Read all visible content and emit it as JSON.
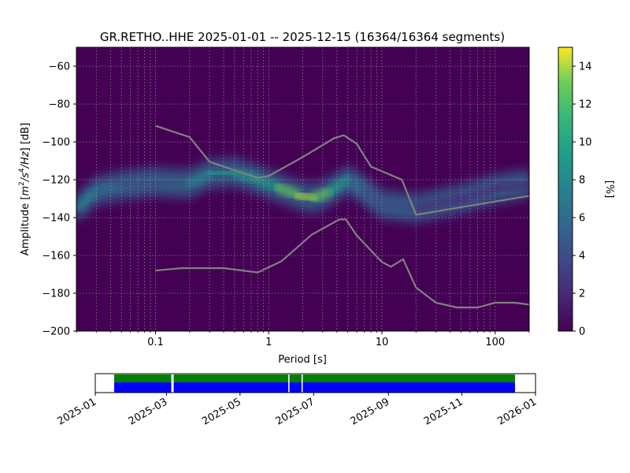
{
  "chart_data": [
    {
      "type": "heatmap",
      "title": "GR.RETHO..HHE   2025-01-01 -- 2025-12-15  (16364/16364 segments)",
      "xlabel": "Period [s]",
      "ylabel": "Amplitude [m2/s4/Hz] [dB]",
      "x_scale": "log",
      "xlim": [
        0.02,
        200
      ],
      "ylim": [
        -200,
        -50
      ],
      "grid": true,
      "colormap": "viridis",
      "colorbar": {
        "label": "[%]",
        "range": [
          0,
          15
        ],
        "ticks": [
          "0",
          "2",
          "4",
          "6",
          "8",
          "10",
          "12",
          "14"
        ]
      },
      "x_ticks": [
        "0.1",
        "1",
        "10",
        "100"
      ],
      "y_ticks": [
        "−200",
        "−180",
        "−160",
        "−140",
        "−120",
        "−100",
        "−80",
        "−60"
      ],
      "density_ridge": [
        {
          "period": 0.02,
          "amplitude": -135,
          "peak_pct": 6
        },
        {
          "period": 0.025,
          "amplitude": -130,
          "peak_pct": 6
        },
        {
          "period": 0.03,
          "amplitude": -126,
          "peak_pct": 6
        },
        {
          "period": 0.05,
          "amplitude": -123,
          "peak_pct": 4
        },
        {
          "period": 0.1,
          "amplitude": -121,
          "peak_pct": 3
        },
        {
          "period": 0.15,
          "amplitude": -122,
          "peak_pct": 4
        },
        {
          "period": 0.2,
          "amplitude": -122,
          "peak_pct": 5
        },
        {
          "period": 0.3,
          "amplitude": -117,
          "peak_pct": 8
        },
        {
          "period": 0.5,
          "amplitude": -116,
          "peak_pct": 9
        },
        {
          "period": 0.8,
          "amplitude": -120,
          "peak_pct": 8
        },
        {
          "period": 1.2,
          "amplitude": -124,
          "peak_pct": 10
        },
        {
          "period": 1.8,
          "amplitude": -128,
          "peak_pct": 13
        },
        {
          "period": 2.5,
          "amplitude": -130,
          "peak_pct": 12
        },
        {
          "period": 3.5,
          "amplitude": -126,
          "peak_pct": 10
        },
        {
          "period": 5,
          "amplitude": -120,
          "peak_pct": 7
        },
        {
          "period": 7,
          "amplitude": -126,
          "peak_pct": 4
        },
        {
          "period": 10,
          "amplitude": -133,
          "peak_pct": 3
        },
        {
          "period": 20,
          "amplitude": -135,
          "peak_pct": 2
        },
        {
          "period": 50,
          "amplitude": -130,
          "peak_pct": 1.5
        },
        {
          "period": 100,
          "amplitude": -125,
          "peak_pct": 1.5
        },
        {
          "period": 200,
          "amplitude": -122,
          "peak_pct": 1.5
        }
      ],
      "series": [
        {
          "points": [
            [
              0.1,
              -91.5
            ],
            [
              0.2,
              -97.5
            ],
            [
              0.3,
              -110.5
            ],
            [
              0.5,
              -115
            ],
            [
              0.8,
              -119
            ],
            [
              1,
              -118
            ],
            [
              2,
              -108
            ],
            [
              3.8,
              -98
            ],
            [
              4.6,
              -96.5
            ],
            [
              6,
              -101
            ],
            [
              8,
              -113
            ],
            [
              15,
              -120
            ],
            [
              20,
              -138.5
            ],
            [
              200,
              -128.5
            ]
          ]
        },
        {
          "points": [
            [
              0.1,
              -168
            ],
            [
              0.17,
              -166.7
            ],
            [
              0.4,
              -166.7
            ],
            [
              0.8,
              -169
            ],
            [
              1.3,
              -163
            ],
            [
              2.4,
              -149
            ],
            [
              4.2,
              -141
            ],
            [
              4.8,
              -141
            ],
            [
              6,
              -149.5
            ],
            [
              10,
              -163.5
            ],
            [
              12,
              -166
            ],
            [
              15.4,
              -162
            ],
            [
              20,
              -177
            ],
            [
              30,
              -185
            ],
            [
              46,
              -187.5
            ],
            [
              70,
              -187.5
            ],
            [
              100,
              -185
            ],
            [
              150,
              -185
            ],
            [
              200,
              -186
            ]
          ]
        }
      ]
    },
    {
      "type": "timeline",
      "x_ticks": [
        "2025-01",
        "2025-03",
        "2025-05",
        "2025-07",
        "2025-09",
        "2025-11",
        "2026-01"
      ],
      "xlim": [
        "2025-01-01",
        "2026-01-01"
      ],
      "coverage_start": "2025-01-01",
      "coverage_end": "2025-12-15",
      "gaps": [
        {
          "start": "2025-03-05",
          "end": "2025-03-07"
        },
        {
          "start": "2025-06-10",
          "end": "2025-06-11"
        },
        {
          "start": "2025-06-21",
          "end": "2025-06-22"
        }
      ],
      "colors": {
        "data": "#0000ff",
        "used": "#008000",
        "gap": "#ffffff"
      }
    }
  ]
}
